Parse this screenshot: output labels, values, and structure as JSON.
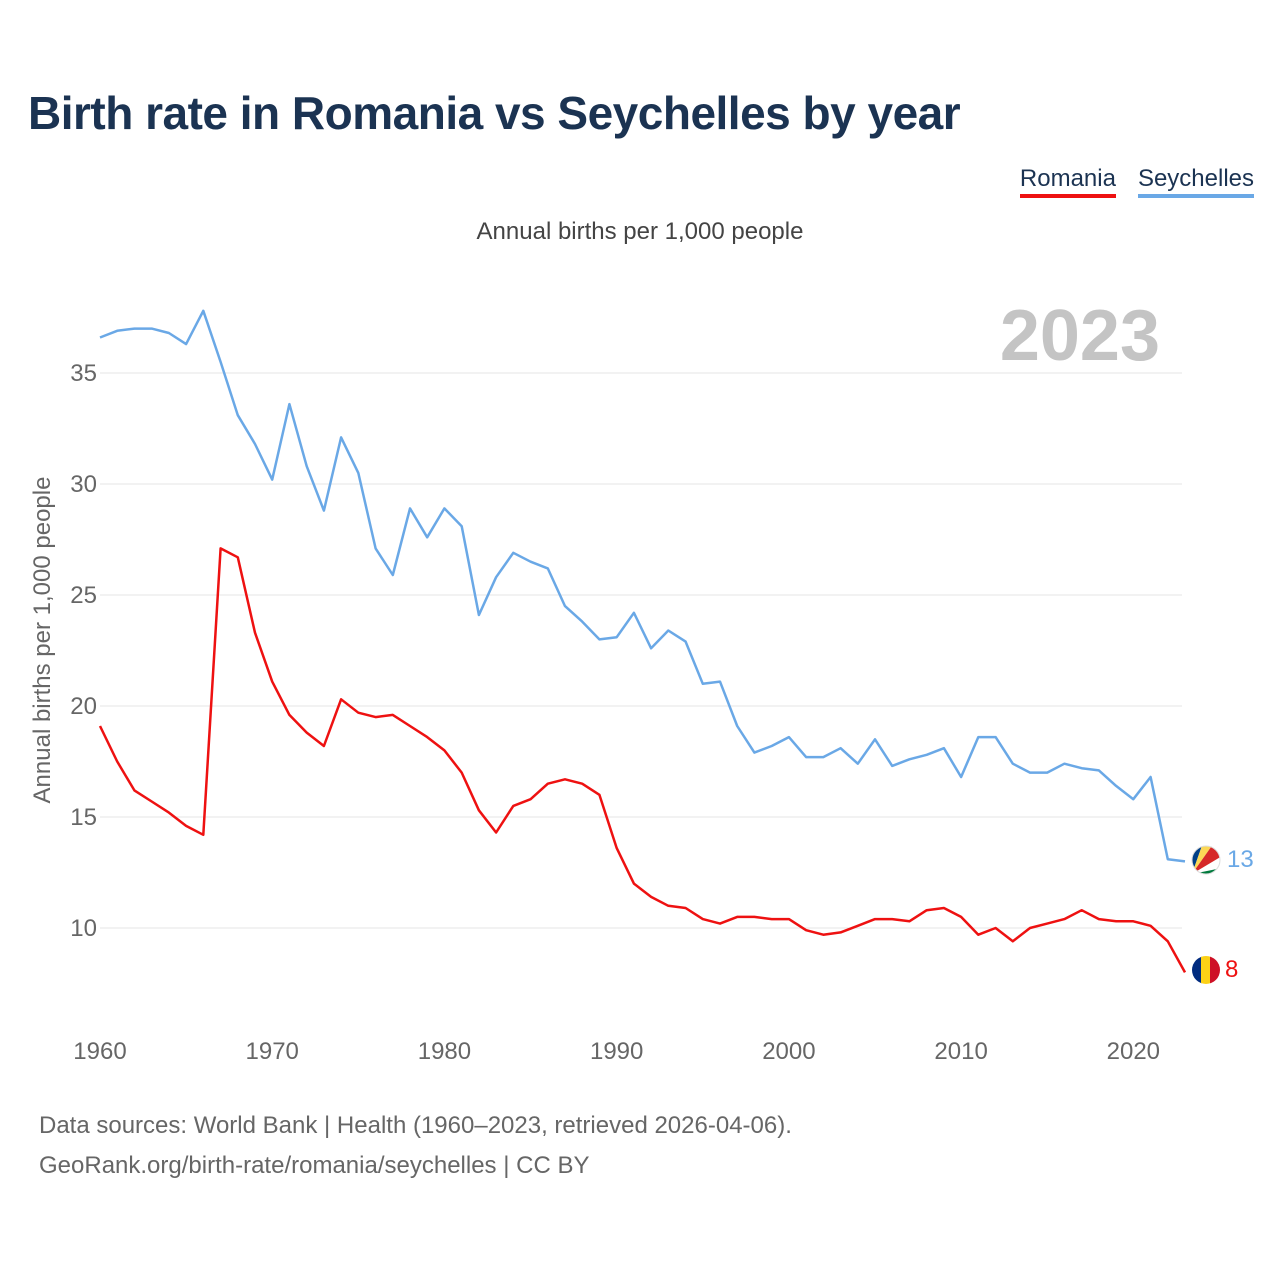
{
  "title": "Birth rate in Romania vs Seychelles by year",
  "subtitle": "Annual births per 1,000 people",
  "legend": [
    {
      "name": "Romania",
      "color": "#ee1111"
    },
    {
      "name": "Seychelles",
      "color": "#6aa8e6"
    }
  ],
  "year_watermark": "2023",
  "footer": {
    "line1": "Data sources: World Bank | Health (1960–2023, retrieved 2026-04-06).",
    "line2": "GeoRank.org/birth-rate/romania/seychelles | CC BY"
  },
  "chart_data": {
    "type": "line",
    "title": "Birth rate in Romania vs Seychelles by year",
    "xlabel": "",
    "ylabel": "Annual births per 1,000 people",
    "xlim": [
      1960,
      2023
    ],
    "ylim": [
      6,
      39
    ],
    "xticks": [
      1960,
      1970,
      1980,
      1990,
      2000,
      2010,
      2020
    ],
    "yticks": [
      10,
      15,
      20,
      25,
      30,
      35
    ],
    "x": [
      1960,
      1961,
      1962,
      1963,
      1964,
      1965,
      1966,
      1967,
      1968,
      1969,
      1970,
      1971,
      1972,
      1973,
      1974,
      1975,
      1976,
      1977,
      1978,
      1979,
      1980,
      1981,
      1982,
      1983,
      1984,
      1985,
      1986,
      1987,
      1988,
      1989,
      1990,
      1991,
      1992,
      1993,
      1994,
      1995,
      1996,
      1997,
      1998,
      1999,
      2000,
      2001,
      2002,
      2003,
      2004,
      2005,
      2006,
      2007,
      2008,
      2009,
      2010,
      2011,
      2012,
      2013,
      2014,
      2015,
      2016,
      2017,
      2018,
      2019,
      2020,
      2021,
      2022,
      2023
    ],
    "series": [
      {
        "name": "Romania",
        "color": "#ee1111",
        "end_label": "8",
        "values": [
          19.1,
          17.5,
          16.2,
          15.7,
          15.2,
          14.6,
          14.2,
          27.1,
          26.7,
          23.3,
          21.1,
          19.6,
          18.8,
          18.2,
          20.3,
          19.7,
          19.5,
          19.6,
          19.1,
          18.6,
          18.0,
          17.0,
          15.3,
          14.3,
          15.5,
          15.8,
          16.5,
          16.7,
          16.5,
          16.0,
          13.6,
          12.0,
          11.4,
          11.0,
          10.9,
          10.4,
          10.2,
          10.5,
          10.5,
          10.4,
          10.4,
          9.9,
          9.7,
          9.8,
          10.1,
          10.4,
          10.4,
          10.3,
          10.8,
          10.9,
          10.5,
          9.7,
          10.0,
          9.4,
          10.0,
          10.2,
          10.4,
          10.8,
          10.4,
          10.3,
          10.3,
          10.1,
          9.4,
          8.0
        ]
      },
      {
        "name": "Seychelles",
        "color": "#6aa8e6",
        "end_label": "13",
        "values": [
          36.6,
          36.9,
          37.0,
          37.0,
          36.8,
          36.3,
          37.8,
          35.5,
          33.1,
          31.8,
          30.2,
          33.6,
          30.8,
          28.8,
          32.1,
          30.5,
          27.1,
          25.9,
          28.9,
          27.6,
          28.9,
          28.1,
          24.1,
          25.8,
          26.9,
          26.5,
          26.2,
          24.5,
          23.8,
          23.0,
          23.1,
          24.2,
          22.6,
          23.4,
          22.9,
          21.0,
          21.1,
          19.1,
          17.9,
          18.2,
          18.6,
          17.7,
          17.7,
          18.1,
          17.4,
          18.5,
          17.3,
          17.6,
          17.8,
          18.1,
          16.8,
          18.6,
          18.6,
          17.4,
          17.0,
          17.0,
          17.4,
          17.2,
          17.1,
          16.4,
          15.8,
          16.8,
          13.1,
          13.0
        ]
      }
    ]
  }
}
